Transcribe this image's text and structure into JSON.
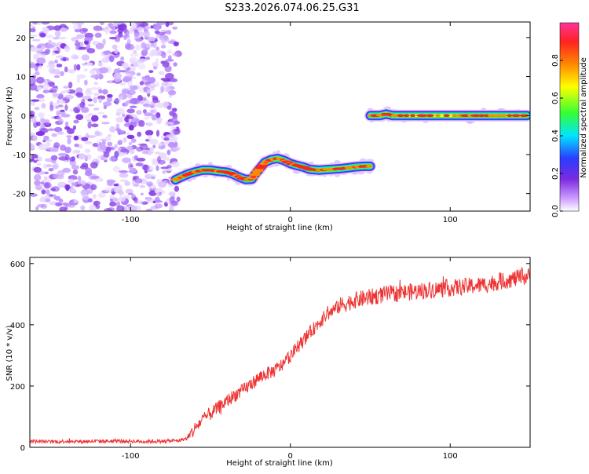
{
  "figure": {
    "title": "S233.2026.074.06.25.G31"
  },
  "colorbar": {
    "label": "Normalized spectral amplitude",
    "ticks": [
      "0.0",
      "0.2",
      "0.4",
      "0.6",
      "0.8"
    ],
    "tick_values": [
      0.0,
      0.2,
      0.4,
      0.6,
      0.8
    ],
    "range": [
      0,
      1
    ],
    "colors": [
      "#ffffff",
      "#cc99ff",
      "#7a2be0",
      "#2a3cff",
      "#00e5ff",
      "#33ff33",
      "#ffff00",
      "#ff8800",
      "#ff2222",
      "#ff3399"
    ]
  },
  "chart_data": [
    {
      "type": "heatmap",
      "title": "",
      "xlabel": "Height of straight line (km)",
      "ylabel": "Frequency (Hz)",
      "xlim": [
        -163,
        150
      ],
      "ylim": [
        -24.5,
        24
      ],
      "xticks": [
        -100,
        0,
        100
      ],
      "xtick_labels": [
        "-100",
        "0",
        "100"
      ],
      "yticks": [
        -20,
        -10,
        0,
        10,
        20
      ],
      "ytick_labels": [
        "-20",
        "-10",
        "0",
        "10",
        "20"
      ],
      "noise_region": {
        "x_start": -163,
        "x_end": -72
      },
      "tracks": [
        {
          "name": "",
          "points": [
            [
              -72,
              -16.5
            ],
            [
              -68,
              -15.7
            ],
            [
              -64,
              -15.0
            ],
            [
              -60,
              -14.5
            ],
            [
              -55,
              -14.0
            ],
            [
              -50,
              -14.0
            ],
            [
              -45,
              -14.3
            ],
            [
              -40,
              -14.5
            ],
            [
              -36,
              -15.0
            ],
            [
              -32,
              -15.8
            ],
            [
              -28,
              -16.4
            ],
            [
              -24,
              -16.3
            ],
            [
              -22,
              -15.0
            ],
            [
              -19,
              -13.5
            ],
            [
              -16,
              -12.0
            ],
            [
              -12,
              -11.3
            ],
            [
              -8,
              -11.0
            ],
            [
              -4,
              -11.5
            ],
            [
              0,
              -12.3
            ],
            [
              4,
              -12.8
            ],
            [
              8,
              -13.2
            ],
            [
              12,
              -13.8
            ],
            [
              18,
              -14.0
            ],
            [
              25,
              -13.8
            ],
            [
              32,
              -13.6
            ],
            [
              40,
              -13.2
            ],
            [
              46,
              -13.0
            ],
            [
              50,
              -13.0
            ]
          ]
        },
        {
          "name": "",
          "points": [
            [
              50,
              0.0
            ],
            [
              56,
              0.0
            ],
            [
              60,
              0.4
            ],
            [
              64,
              0.0
            ],
            [
              75,
              0.0
            ],
            [
              90,
              0.0
            ],
            [
              105,
              0.0
            ],
            [
              115,
              0.0
            ],
            [
              125,
              0.0
            ],
            [
              135,
              0.0
            ],
            [
              148,
              0.0
            ]
          ]
        }
      ]
    },
    {
      "type": "line",
      "title": "",
      "xlabel": "Height of straight line (km)",
      "ylabel": "SNR (10 * v/v)",
      "xlim": [
        -163,
        150
      ],
      "ylim": [
        0,
        620
      ],
      "xticks": [
        -100,
        0,
        100
      ],
      "xtick_labels": [
        "-100",
        "0",
        "100"
      ],
      "yticks": [
        0,
        200,
        400,
        600
      ],
      "ytick_labels": [
        "0",
        "200",
        "400",
        "600"
      ],
      "color": "#ee3333",
      "series": [
        {
          "name": "",
          "x": [
            -163,
            -150,
            -140,
            -130,
            -120,
            -110,
            -100,
            -90,
            -80,
            -70,
            -64,
            -60,
            -55,
            -50,
            -45,
            -40,
            -35,
            -30,
            -25,
            -20,
            -15,
            -10,
            -5,
            0,
            5,
            10,
            15,
            20,
            25,
            30,
            35,
            40,
            50,
            60,
            70,
            80,
            90,
            100,
            110,
            120,
            130,
            140,
            150
          ],
          "values": [
            20,
            18,
            20,
            19,
            20,
            20,
            20,
            19,
            20,
            22,
            30,
            60,
            90,
            110,
            130,
            150,
            170,
            185,
            205,
            225,
            240,
            250,
            270,
            300,
            330,
            360,
            390,
            420,
            440,
            460,
            470,
            480,
            490,
            500,
            505,
            510,
            515,
            520,
            525,
            530,
            540,
            550,
            560
          ]
        }
      ]
    }
  ]
}
